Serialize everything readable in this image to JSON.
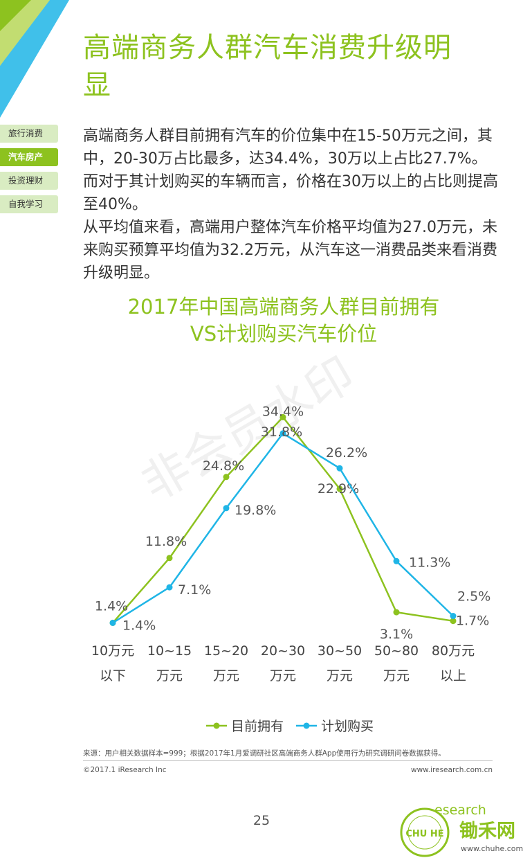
{
  "header": {
    "title_line1": "高端商务人群汽车消费升级明",
    "title_line2": "显"
  },
  "sidenav": {
    "items": [
      {
        "label": "旅行消费",
        "active": false
      },
      {
        "label": "汽车房产",
        "active": true
      },
      {
        "label": "投资理财",
        "active": false
      },
      {
        "label": "自我学习",
        "active": false
      }
    ]
  },
  "body": {
    "paragraph1": "高端商务人群目前拥有汽车的价位集中在15-50万元之间，其中，20-30万占比最多，达34.4%，30万以上占比27.7%。而对于其计划购买的车辆而言，价格在30万以上的占比则提高至40%。",
    "paragraph2": "从平均值来看，高端用户整体汽车价格平均值为27.0万元，未来购买预算平均值为32.2万元，从汽车这一消费品类来看消费升级明显。"
  },
  "chart_data": {
    "type": "line",
    "title_line1": "2017年中国高端商务人群目前拥有",
    "title_line2": "VS计划购买汽车价位",
    "categories": [
      [
        "10万元",
        "以下"
      ],
      [
        "10~15",
        "万元"
      ],
      [
        "15~20",
        "万元"
      ],
      [
        "20~30",
        "万元"
      ],
      [
        "30~50",
        "万元"
      ],
      [
        "50~80",
        "万元"
      ],
      [
        "80万元",
        "以上"
      ]
    ],
    "series": [
      {
        "name": "目前拥有",
        "color": "#8dc21f",
        "values": [
          1.4,
          11.8,
          24.8,
          34.4,
          22.9,
          3.1,
          1.7
        ],
        "labels": [
          "1.4%",
          "11.8%",
          "24.8%",
          "34.4%",
          "22.9%",
          "3.1%",
          "1.7%"
        ]
      },
      {
        "name": "计划购买",
        "color": "#1fb5e6",
        "values": [
          1.4,
          7.1,
          19.8,
          31.8,
          26.2,
          11.3,
          2.5
        ],
        "labels": [
          "1.4%",
          "7.1%",
          "19.8%",
          "31.8%",
          "26.2%",
          "11.3%",
          "2.5%"
        ]
      }
    ],
    "ylim": [
      0,
      40
    ],
    "grid": false,
    "legend_position": "bottom",
    "watermark": "非会员水印"
  },
  "footer": {
    "source": "来源：用户相关数据样本=999；根据2017年1月爱调研社区高端商务人群App使用行为研究调研问卷数据获得。",
    "copyright": "©2017.1 iResearch Inc",
    "website": "www.iresearch.com.cn",
    "page_number": "25"
  },
  "brand": {
    "name": "锄禾网",
    "url": "www.chuhe.com",
    "partial_logo": "esearch"
  }
}
